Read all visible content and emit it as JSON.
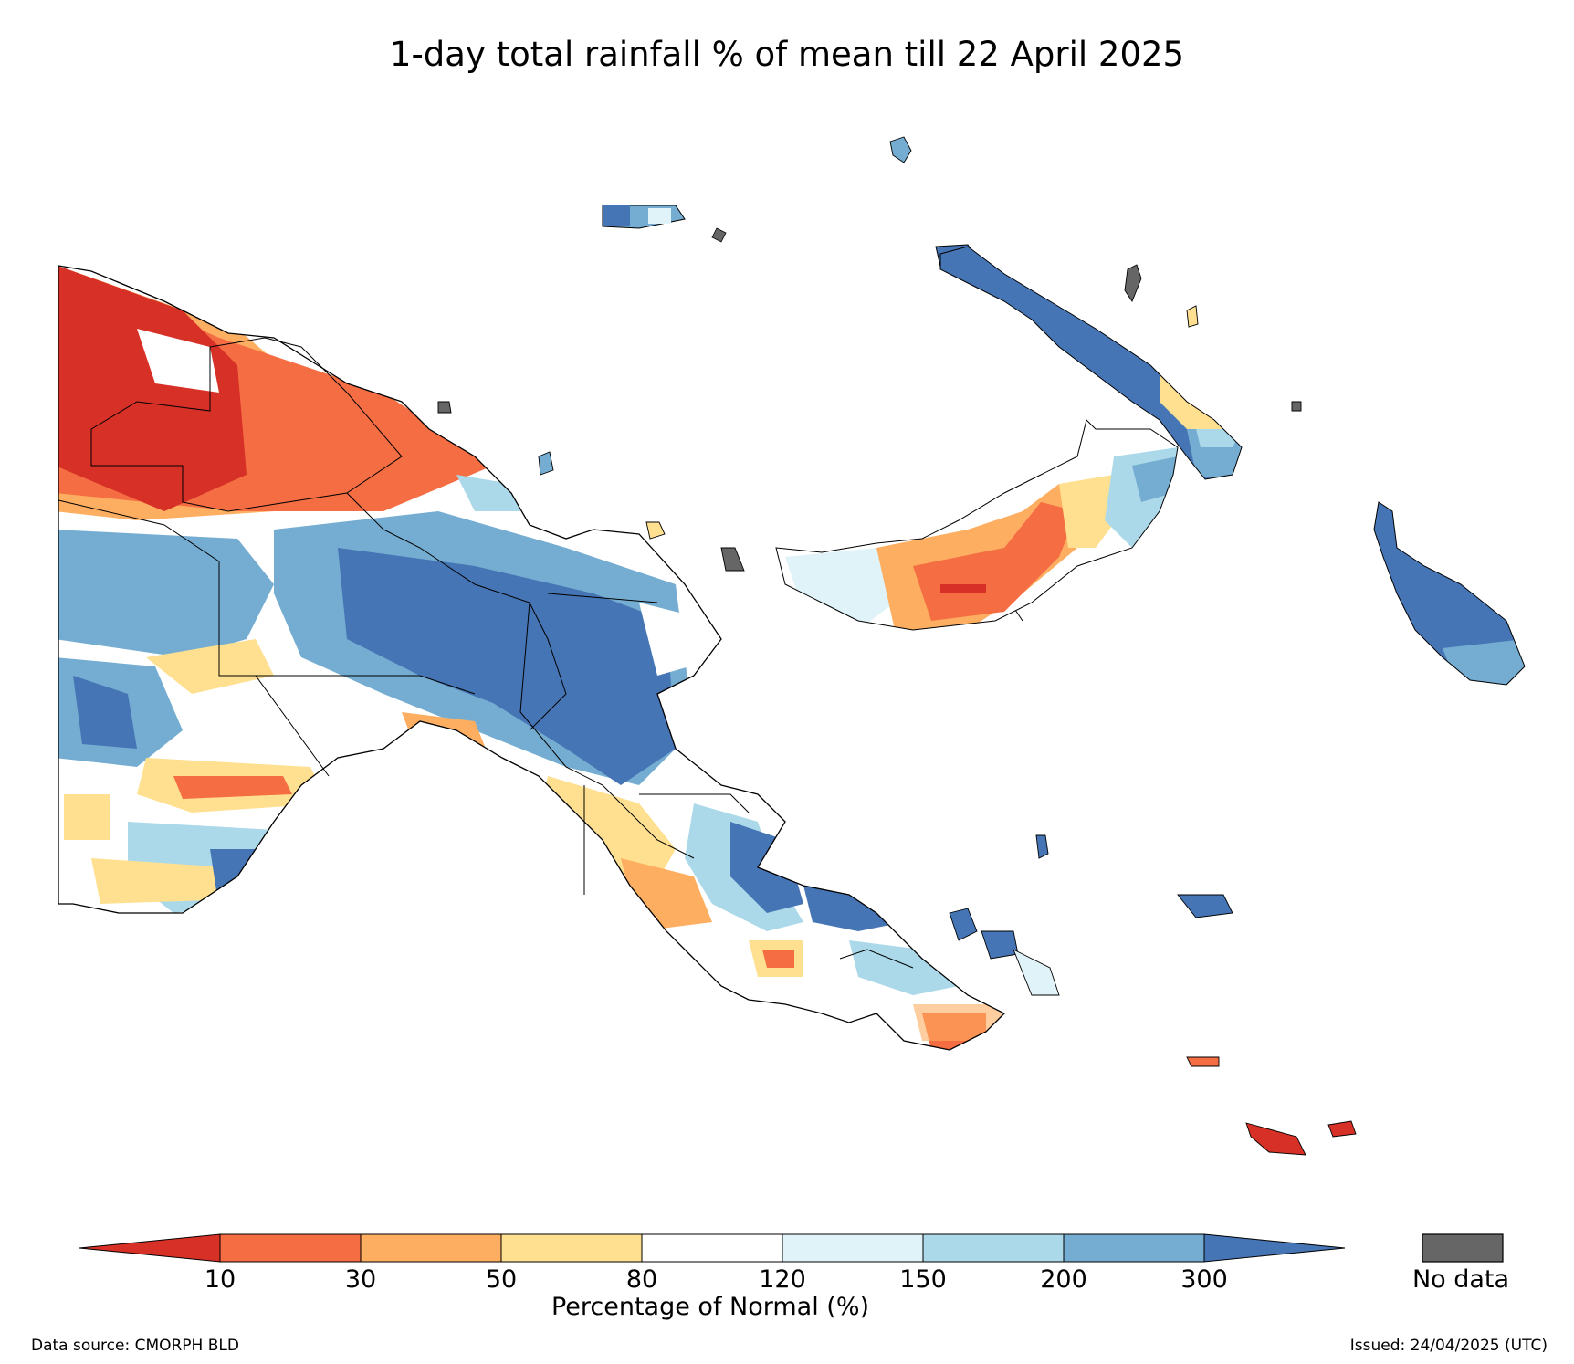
{
  "title": "1-day total rainfall % of mean till 22 April 2025",
  "legend": {
    "label": "Percentage of Normal (%)",
    "ticks": [
      "10",
      "30",
      "50",
      "80",
      "120",
      "150",
      "200",
      "300"
    ],
    "bins": [
      {
        "range": "<10",
        "color": "#d73027"
      },
      {
        "range": "10-30",
        "color": "#f46d43"
      },
      {
        "range": "30-50",
        "color": "#fdae61"
      },
      {
        "range": "50-80",
        "color": "#fee090"
      },
      {
        "range": "80-120",
        "color": "#ffffff"
      },
      {
        "range": "120-150",
        "color": "#e0f3f8"
      },
      {
        "range": "150-200",
        "color": "#abd9e9"
      },
      {
        "range": "200-300",
        "color": "#74add1"
      },
      {
        "range": ">300",
        "color": "#4575b4"
      }
    ],
    "no_data_label": "No data",
    "no_data_color": "#666666"
  },
  "footer": {
    "source": "Data source: CMORPH BLD",
    "issued": "Issued: 24/04/2025 (UTC)"
  }
}
